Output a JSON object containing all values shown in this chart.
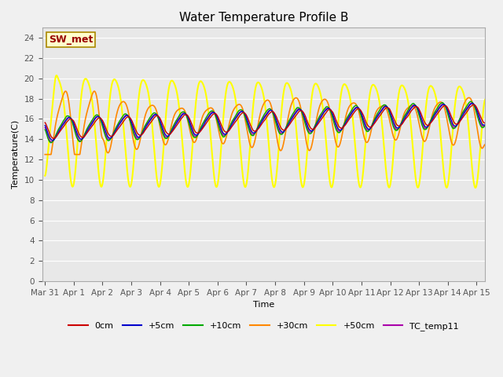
{
  "title": "Water Temperature Profile B",
  "xlabel": "Time",
  "ylabel": "Temperature(C)",
  "ylim": [
    0,
    25
  ],
  "yticks": [
    0,
    2,
    4,
    6,
    8,
    10,
    12,
    14,
    16,
    18,
    20,
    22,
    24
  ],
  "x_start_day": -0.1,
  "x_end_day": 15.3,
  "xtick_labels": [
    "Mar 31",
    "Apr 1",
    "Apr 2",
    "Apr 3",
    "Apr 4",
    "Apr 5",
    "Apr 6",
    "Apr 7",
    "Apr 8",
    "Apr 9",
    "Apr 10",
    "Apr 11",
    "Apr 12",
    "Apr 13",
    "Apr 14",
    "Apr 15"
  ],
  "xtick_positions": [
    0,
    1,
    2,
    3,
    4,
    5,
    6,
    7,
    8,
    9,
    10,
    11,
    12,
    13,
    14,
    15
  ],
  "annotation_text": "SW_met",
  "series": {
    "0cm": {
      "color": "#cc0000",
      "lw": 1.0
    },
    "+5cm": {
      "color": "#0000cc",
      "lw": 1.0
    },
    "+10cm": {
      "color": "#00aa00",
      "lw": 1.0
    },
    "+30cm": {
      "color": "#ff8800",
      "lw": 1.2
    },
    "+50cm": {
      "color": "#ffff00",
      "lw": 1.5
    },
    "TC_temp11": {
      "color": "#aa00aa",
      "lw": 1.0
    }
  },
  "fig_bg_color": "#f0f0f0",
  "plot_bg_color": "#e8e8e8",
  "grid_color": "#ffffff",
  "title_fontsize": 11,
  "tick_fontsize": 7.5,
  "label_fontsize": 8,
  "legend_fontsize": 8
}
